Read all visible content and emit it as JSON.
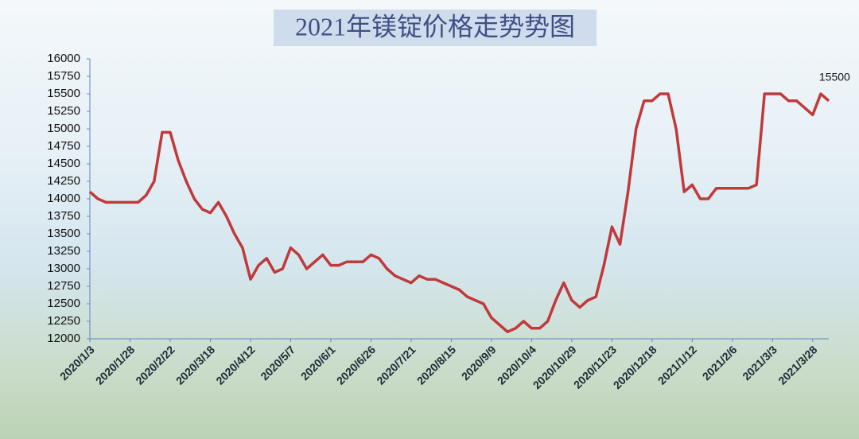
{
  "chart_data": {
    "type": "line",
    "title": "2021年镁锭价格走势势图",
    "categories": [
      "2020/1/3",
      null,
      null,
      null,
      null,
      "2020/1/28",
      null,
      null,
      null,
      null,
      "2020/2/22",
      null,
      null,
      null,
      null,
      "2020/3/18",
      null,
      null,
      null,
      null,
      "2020/4/12",
      null,
      null,
      null,
      null,
      "2020/5/7",
      null,
      null,
      null,
      null,
      "2020/6/1",
      null,
      null,
      null,
      null,
      "2020/6/26",
      null,
      null,
      null,
      null,
      "2020/7/21",
      null,
      null,
      null,
      null,
      "2020/8/15",
      null,
      null,
      null,
      null,
      "2020/9/9",
      null,
      null,
      null,
      null,
      "2020/10/4",
      null,
      null,
      null,
      null,
      "2020/10/29",
      null,
      null,
      null,
      null,
      "2020/11/23",
      null,
      null,
      null,
      null,
      "2020/12/18",
      null,
      null,
      null,
      null,
      "2021/1/12",
      null,
      null,
      null,
      null,
      "2021/2/6",
      null,
      null,
      null,
      null,
      "2021/3/3",
      null,
      null,
      null,
      null,
      "2021/3/28",
      null,
      null
    ],
    "values": [
      14100,
      14000,
      13950,
      13950,
      13950,
      13950,
      13950,
      14050,
      14250,
      14950,
      14950,
      14550,
      14250,
      14000,
      13850,
      13800,
      13950,
      13750,
      13500,
      13300,
      12850,
      13050,
      13150,
      12950,
      13000,
      13300,
      13200,
      13000,
      13100,
      13200,
      13050,
      13050,
      13100,
      13100,
      13100,
      13200,
      13150,
      13000,
      12900,
      12850,
      12800,
      12900,
      12850,
      12850,
      12800,
      12750,
      12700,
      12600,
      12550,
      12500,
      12300,
      12200,
      12100,
      12150,
      12250,
      12150,
      12150,
      12250,
      12550,
      12800,
      12550,
      12450,
      12550,
      12600,
      13050,
      13600,
      13350,
      14100,
      15000,
      15400,
      15400,
      15500,
      15500,
      15000,
      14100,
      14200,
      14000,
      14000,
      14150,
      14150,
      14150,
      14150,
      14150,
      14200,
      15500,
      15500,
      15500,
      15400,
      15400,
      15300,
      15200,
      15500,
      15400
    ],
    "value_labels": [
      null,
      null,
      null,
      null,
      null,
      null,
      null,
      null,
      null,
      null,
      null,
      null,
      null,
      null,
      null,
      null,
      null,
      null,
      null,
      null,
      null,
      null,
      null,
      null,
      null,
      null,
      null,
      null,
      null,
      null,
      null,
      null,
      null,
      null,
      null,
      null,
      null,
      null,
      null,
      null,
      null,
      null,
      null,
      null,
      null,
      null,
      null,
      null,
      null,
      null,
      null,
      null,
      null,
      null,
      null,
      null,
      null,
      null,
      null,
      null,
      null,
      null,
      null,
      null,
      null,
      null,
      null,
      null,
      null,
      null,
      null,
      null,
      null,
      null,
      null,
      null,
      null,
      null,
      null,
      null,
      null,
      null,
      null,
      null,
      null,
      null,
      null,
      null,
      null,
      null,
      null,
      "15500",
      null
    ],
    "color": "#c0393b",
    "ylim": [
      12000,
      16000
    ],
    "yticks": [
      12000,
      12250,
      12500,
      12750,
      13000,
      13250,
      13500,
      13750,
      14000,
      14250,
      14500,
      14750,
      15000,
      15250,
      15500,
      15750,
      16000
    ],
    "grid": false
  }
}
